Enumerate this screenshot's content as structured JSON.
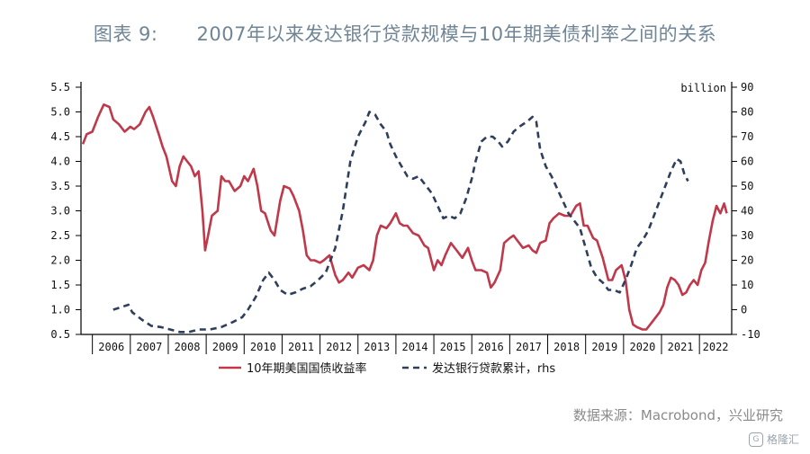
{
  "header": {
    "title": "图表 9:      2007年以来发达银行贷款规模与10年期美债利率之间的关系"
  },
  "footer": {
    "source": "数据来源：Macrobond，兴业研究",
    "watermark": "格隆汇",
    "watermark_icon": "G"
  },
  "colors": {
    "yield": "#c0394b",
    "loans": "#2e3f5c",
    "axis": "#000000",
    "title": "#6f8596"
  },
  "chart_data": {
    "type": "line",
    "title": "2007年以来发达银行贷款规模与10年期美债利率之间的关系",
    "x_range": [
      2005.7,
      2022.85
    ],
    "x_ticks": [
      "2006",
      "2007",
      "2008",
      "2009",
      "2010",
      "2011",
      "2012",
      "2013",
      "2014",
      "2015",
      "2016",
      "2017",
      "2018",
      "2019",
      "2020",
      "2021",
      "2022"
    ],
    "y_left": {
      "range": [
        0.5,
        5.5
      ],
      "ticks": [
        "0.5",
        "1.0",
        "1.5",
        "2.0",
        "2.5",
        "3.0",
        "3.5",
        "4.0",
        "4.5",
        "5.0",
        "5.5"
      ]
    },
    "y_right": {
      "range": [
        -10,
        90
      ],
      "unit_label": "billion",
      "ticks": [
        "-10",
        "0",
        "10",
        "20",
        "30",
        "40",
        "50",
        "60",
        "70",
        "80",
        "90"
      ]
    },
    "series": [
      {
        "name": "10年期美国国债收益率",
        "axis": "left",
        "style": "solid",
        "points": [
          [
            2005.75,
            4.35
          ],
          [
            2005.85,
            4.55
          ],
          [
            2006.0,
            4.6
          ],
          [
            2006.15,
            4.9
          ],
          [
            2006.3,
            5.15
          ],
          [
            2006.45,
            5.1
          ],
          [
            2006.55,
            4.85
          ],
          [
            2006.7,
            4.75
          ],
          [
            2006.85,
            4.6
          ],
          [
            2007.0,
            4.7
          ],
          [
            2007.1,
            4.65
          ],
          [
            2007.25,
            4.75
          ],
          [
            2007.4,
            5.0
          ],
          [
            2007.5,
            5.1
          ],
          [
            2007.6,
            4.9
          ],
          [
            2007.75,
            4.55
          ],
          [
            2007.85,
            4.3
          ],
          [
            2007.95,
            4.1
          ],
          [
            2008.1,
            3.6
          ],
          [
            2008.2,
            3.5
          ],
          [
            2008.3,
            3.9
          ],
          [
            2008.4,
            4.1
          ],
          [
            2008.5,
            4.0
          ],
          [
            2008.6,
            3.9
          ],
          [
            2008.7,
            3.7
          ],
          [
            2008.8,
            3.8
          ],
          [
            2008.9,
            3.0
          ],
          [
            2008.97,
            2.2
          ],
          [
            2009.05,
            2.5
          ],
          [
            2009.15,
            2.9
          ],
          [
            2009.3,
            3.0
          ],
          [
            2009.4,
            3.7
          ],
          [
            2009.5,
            3.6
          ],
          [
            2009.6,
            3.6
          ],
          [
            2009.75,
            3.4
          ],
          [
            2009.9,
            3.5
          ],
          [
            2010.0,
            3.7
          ],
          [
            2010.1,
            3.6
          ],
          [
            2010.25,
            3.85
          ],
          [
            2010.35,
            3.5
          ],
          [
            2010.45,
            3.0
          ],
          [
            2010.55,
            2.95
          ],
          [
            2010.7,
            2.6
          ],
          [
            2010.8,
            2.5
          ],
          [
            2010.95,
            3.2
          ],
          [
            2011.05,
            3.5
          ],
          [
            2011.2,
            3.45
          ],
          [
            2011.3,
            3.3
          ],
          [
            2011.45,
            3.0
          ],
          [
            2011.55,
            2.6
          ],
          [
            2011.65,
            2.1
          ],
          [
            2011.75,
            2.0
          ],
          [
            2011.85,
            2.0
          ],
          [
            2012.0,
            1.95
          ],
          [
            2012.1,
            2.0
          ],
          [
            2012.25,
            2.1
          ],
          [
            2012.4,
            1.7
          ],
          [
            2012.5,
            1.55
          ],
          [
            2012.6,
            1.6
          ],
          [
            2012.75,
            1.75
          ],
          [
            2012.85,
            1.65
          ],
          [
            2013.0,
            1.85
          ],
          [
            2013.15,
            1.9
          ],
          [
            2013.3,
            1.8
          ],
          [
            2013.4,
            2.0
          ],
          [
            2013.5,
            2.5
          ],
          [
            2013.6,
            2.7
          ],
          [
            2013.75,
            2.65
          ],
          [
            2013.85,
            2.75
          ],
          [
            2014.0,
            2.95
          ],
          [
            2014.1,
            2.75
          ],
          [
            2014.2,
            2.7
          ],
          [
            2014.3,
            2.7
          ],
          [
            2014.45,
            2.55
          ],
          [
            2014.6,
            2.5
          ],
          [
            2014.75,
            2.3
          ],
          [
            2014.85,
            2.25
          ],
          [
            2015.0,
            1.8
          ],
          [
            2015.1,
            2.0
          ],
          [
            2015.2,
            1.9
          ],
          [
            2015.3,
            2.1
          ],
          [
            2015.45,
            2.35
          ],
          [
            2015.6,
            2.2
          ],
          [
            2015.75,
            2.05
          ],
          [
            2015.9,
            2.25
          ],
          [
            2016.0,
            2.0
          ],
          [
            2016.1,
            1.8
          ],
          [
            2016.25,
            1.8
          ],
          [
            2016.4,
            1.75
          ],
          [
            2016.5,
            1.45
          ],
          [
            2016.6,
            1.55
          ],
          [
            2016.75,
            1.8
          ],
          [
            2016.85,
            2.35
          ],
          [
            2017.0,
            2.45
          ],
          [
            2017.1,
            2.5
          ],
          [
            2017.2,
            2.4
          ],
          [
            2017.35,
            2.25
          ],
          [
            2017.5,
            2.3
          ],
          [
            2017.6,
            2.2
          ],
          [
            2017.7,
            2.15
          ],
          [
            2017.8,
            2.35
          ],
          [
            2017.95,
            2.4
          ],
          [
            2018.05,
            2.75
          ],
          [
            2018.15,
            2.85
          ],
          [
            2018.3,
            2.95
          ],
          [
            2018.45,
            2.9
          ],
          [
            2018.6,
            2.9
          ],
          [
            2018.75,
            3.1
          ],
          [
            2018.85,
            3.15
          ],
          [
            2018.95,
            2.7
          ],
          [
            2019.05,
            2.7
          ],
          [
            2019.2,
            2.45
          ],
          [
            2019.3,
            2.4
          ],
          [
            2019.45,
            2.05
          ],
          [
            2019.6,
            1.6
          ],
          [
            2019.7,
            1.6
          ],
          [
            2019.8,
            1.8
          ],
          [
            2019.95,
            1.9
          ],
          [
            2020.05,
            1.6
          ],
          [
            2020.15,
            1.0
          ],
          [
            2020.25,
            0.7
          ],
          [
            2020.35,
            0.65
          ],
          [
            2020.5,
            0.6
          ],
          [
            2020.6,
            0.6
          ],
          [
            2020.75,
            0.75
          ],
          [
            2020.85,
            0.85
          ],
          [
            2020.95,
            0.95
          ],
          [
            2021.05,
            1.1
          ],
          [
            2021.15,
            1.45
          ],
          [
            2021.25,
            1.65
          ],
          [
            2021.35,
            1.6
          ],
          [
            2021.45,
            1.5
          ],
          [
            2021.55,
            1.3
          ],
          [
            2021.65,
            1.35
          ],
          [
            2021.75,
            1.5
          ],
          [
            2021.85,
            1.6
          ],
          [
            2021.95,
            1.5
          ],
          [
            2022.05,
            1.8
          ],
          [
            2022.15,
            1.95
          ],
          [
            2022.25,
            2.4
          ],
          [
            2022.35,
            2.8
          ],
          [
            2022.45,
            3.1
          ],
          [
            2022.55,
            2.95
          ],
          [
            2022.65,
            3.15
          ],
          [
            2022.72,
            2.95
          ]
        ]
      },
      {
        "name": "发达银行贷款累计，rhs",
        "axis": "right",
        "style": "dashed",
        "points": [
          [
            2006.55,
            0
          ],
          [
            2006.75,
            1
          ],
          [
            2006.95,
            2
          ],
          [
            2007.05,
            -1
          ],
          [
            2007.3,
            -4
          ],
          [
            2007.55,
            -6.5
          ],
          [
            2007.8,
            -7
          ],
          [
            2008.05,
            -8
          ],
          [
            2008.3,
            -9
          ],
          [
            2008.55,
            -9
          ],
          [
            2008.8,
            -8
          ],
          [
            2009.1,
            -8
          ],
          [
            2009.4,
            -7
          ],
          [
            2009.7,
            -5
          ],
          [
            2009.95,
            -3
          ],
          [
            2010.1,
            0
          ],
          [
            2010.3,
            5
          ],
          [
            2010.5,
            12
          ],
          [
            2010.65,
            15
          ],
          [
            2010.8,
            12
          ],
          [
            2010.95,
            8
          ],
          [
            2011.15,
            6
          ],
          [
            2011.35,
            7
          ],
          [
            2011.55,
            8.5
          ],
          [
            2011.75,
            9.5
          ],
          [
            2011.95,
            12
          ],
          [
            2012.15,
            15
          ],
          [
            2012.4,
            25
          ],
          [
            2012.6,
            40
          ],
          [
            2012.8,
            60
          ],
          [
            2013.0,
            70
          ],
          [
            2013.2,
            76
          ],
          [
            2013.3,
            80
          ],
          [
            2013.45,
            79
          ],
          [
            2013.6,
            75
          ],
          [
            2013.75,
            72
          ],
          [
            2013.85,
            67
          ],
          [
            2014.0,
            62
          ],
          [
            2014.15,
            58
          ],
          [
            2014.3,
            54
          ],
          [
            2014.45,
            53
          ],
          [
            2014.6,
            54
          ],
          [
            2014.8,
            50
          ],
          [
            2014.95,
            47
          ],
          [
            2015.1,
            42
          ],
          [
            2015.25,
            37
          ],
          [
            2015.4,
            38
          ],
          [
            2015.55,
            37
          ],
          [
            2015.7,
            39
          ],
          [
            2015.85,
            45
          ],
          [
            2016.0,
            53
          ],
          [
            2016.1,
            60
          ],
          [
            2016.25,
            68
          ],
          [
            2016.4,
            70
          ],
          [
            2016.55,
            70
          ],
          [
            2016.7,
            68
          ],
          [
            2016.8,
            66
          ],
          [
            2016.95,
            68
          ],
          [
            2017.1,
            72
          ],
          [
            2017.25,
            74
          ],
          [
            2017.45,
            76
          ],
          [
            2017.6,
            78
          ],
          [
            2017.7,
            76
          ],
          [
            2017.8,
            65
          ],
          [
            2017.95,
            58
          ],
          [
            2018.1,
            54
          ],
          [
            2018.25,
            49
          ],
          [
            2018.4,
            44
          ],
          [
            2018.55,
            39
          ],
          [
            2018.7,
            36
          ],
          [
            2018.85,
            33
          ],
          [
            2019.0,
            25
          ],
          [
            2019.15,
            17
          ],
          [
            2019.3,
            13
          ],
          [
            2019.45,
            11
          ],
          [
            2019.6,
            8
          ],
          [
            2019.75,
            8
          ],
          [
            2019.9,
            7
          ],
          [
            2020.05,
            12
          ],
          [
            2020.2,
            18
          ],
          [
            2020.35,
            25
          ],
          [
            2020.5,
            28
          ],
          [
            2020.65,
            32
          ],
          [
            2020.8,
            38
          ],
          [
            2020.95,
            44
          ],
          [
            2021.1,
            50
          ],
          [
            2021.25,
            56
          ],
          [
            2021.4,
            61
          ],
          [
            2021.5,
            60
          ],
          [
            2021.6,
            55
          ],
          [
            2021.7,
            52
          ]
        ]
      }
    ],
    "legend": {
      "placement": "bottom-center"
    }
  }
}
